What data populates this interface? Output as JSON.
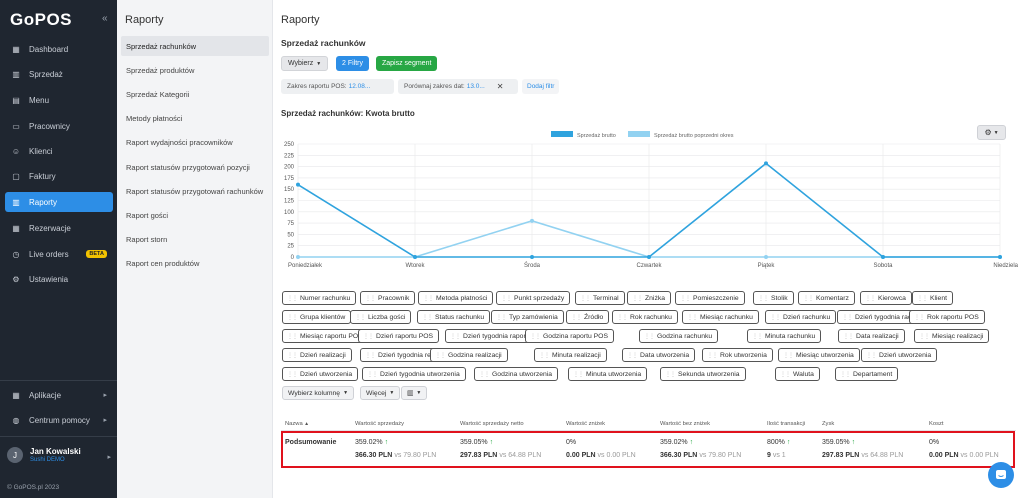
{
  "app": {
    "logo": "GoPOS",
    "collapse": "«",
    "copyright": "© GoPOS.pl 2023"
  },
  "nav": [
    {
      "label": "Dashboard",
      "icon": "dashboard-icon"
    },
    {
      "label": "Sprzedaż",
      "icon": "chart-icon"
    },
    {
      "label": "Menu",
      "icon": "menu-book-icon"
    },
    {
      "label": "Pracownicy",
      "icon": "id-card-icon"
    },
    {
      "label": "Klienci",
      "icon": "users-icon"
    },
    {
      "label": "Faktury",
      "icon": "invoice-icon"
    },
    {
      "label": "Raporty",
      "icon": "report-icon",
      "active": true
    },
    {
      "label": "Rezerwacje",
      "icon": "calendar-icon"
    },
    {
      "label": "Live orders",
      "icon": "clock-icon",
      "badge": "BETA"
    },
    {
      "label": "Ustawienia",
      "icon": "settings-icon"
    }
  ],
  "nav_bottom": [
    {
      "label": "Aplikacje",
      "icon": "apps-icon"
    },
    {
      "label": "Centrum pomocy",
      "icon": "help-icon"
    }
  ],
  "user": {
    "initial": "J",
    "name": "Jan Kowalski",
    "venue": "Sushi DEMO"
  },
  "submenu": {
    "title": "Raporty",
    "items": [
      "Sprzedaż rachunków",
      "Sprzedaż produktów",
      "Sprzedaż Kategorii",
      "Metody płatności",
      "Raport wydajności pracowników",
      "Raport statusów przygotowań pozycji",
      "Raport statusów przygotowań rachunków",
      "Raport gości",
      "Raport storn",
      "Raport cen produktów"
    ]
  },
  "main": {
    "title": "Raporty",
    "subtitle": "Sprzedaż rachunków",
    "select_label": "Wybierz",
    "filters_label": "2 Filtry",
    "save_segment_label": "Zapisz segment",
    "range_label": "Zakres raportu POS:",
    "range_value": "12.08...",
    "compare_label": "Porównaj zakres dat:",
    "compare_value": "13.0...",
    "add_filter_label": "Dodaj filtr",
    "chart_title": "Sprzedaż rachunków: Kwota brutto"
  },
  "chart_data": {
    "type": "line",
    "categories": [
      "Poniedziałek",
      "Wtorek",
      "Środa",
      "Czwartek",
      "Piątek",
      "Sobota",
      "Niedziela"
    ],
    "series": [
      {
        "name": "Sprzedaż brutto",
        "values": [
          160,
          0,
          0,
          0,
          207,
          0,
          0
        ],
        "color": "#2fa3de"
      },
      {
        "name": "Sprzedaż brutto poprzedni okres",
        "values": [
          0,
          0,
          80,
          0,
          0,
          0,
          0
        ],
        "color": "#92d2f1"
      }
    ],
    "yticks": [
      0,
      25,
      50,
      75,
      100,
      125,
      150,
      175,
      200,
      225,
      250
    ],
    "ylim": [
      0,
      250
    ],
    "legend": "top",
    "grid": true
  },
  "chips": [
    "Numer rachunku",
    "Pracownik",
    "Metoda płatności",
    "Punkt sprzedaży",
    "Terminal",
    "Zniżka",
    "Pomieszczenie",
    "Stolik",
    "Komentarz",
    "Kierowca",
    "Klient",
    "Grupa klientów",
    "Liczba gości",
    "Status rachunku",
    "Typ zamówienia",
    "Źródło",
    "Rok rachunku",
    "Miesiąc rachunku",
    "Dzień rachunku",
    "Dzień tygodnia rachunku",
    "Rok raportu POS",
    "Miesiąc raportu POS",
    "Dzień raportu POS",
    "Dzień tygodnia raportu POS",
    "Godzina raportu POS",
    "Godzina rachunku",
    "Minuta rachunku",
    "Data realizacji",
    "Miesiąc realizacji",
    "Dzień realizacji",
    "Dzień tygodnia realizacji",
    "Godzina realizacji",
    "Minuta realizacji",
    "Data utworzenia",
    "Rok utworzenia",
    "Miesiąc utworzenia",
    "Dzień utworzenia",
    "Dzień tygodnia utworzenia",
    "Godzina utworzenia",
    "Minuta utworzenia",
    "Sekunda utworzenia",
    "Waluta",
    "Departament"
  ],
  "column_tools": {
    "select_column": "Wybierz kolumnę",
    "more": "Więcej"
  },
  "table": {
    "headers": [
      "Nazwa",
      "Wartość sprzedaży",
      "Wartość sprzedaży netto",
      "Wartość zniżek",
      "Wartość bez zniżek",
      "Ilość transakcji",
      "Zysk",
      "Koszt"
    ],
    "summary": {
      "name": "Podsumowanie",
      "cells": [
        {
          "pct": "359.02%",
          "up": true,
          "value": "366.30 PLN",
          "vs": "vs 79.80 PLN"
        },
        {
          "pct": "359.05%",
          "up": true,
          "value": "297.83 PLN",
          "vs": "vs 64.88 PLN"
        },
        {
          "pct": "0%",
          "up": false,
          "value": "0.00 PLN",
          "vs": "vs 0.00 PLN"
        },
        {
          "pct": "359.02%",
          "up": true,
          "value": "366.30 PLN",
          "vs": "vs 79.80 PLN"
        },
        {
          "pct": "800%",
          "up": true,
          "value": "9",
          "vs": "vs 1"
        },
        {
          "pct": "359.05%",
          "up": true,
          "value": "297.83 PLN",
          "vs": "vs 64.88 PLN"
        },
        {
          "pct": "0%",
          "up": false,
          "value": "0.00 PLN",
          "vs": "vs 0.00 PLN"
        }
      ]
    }
  }
}
